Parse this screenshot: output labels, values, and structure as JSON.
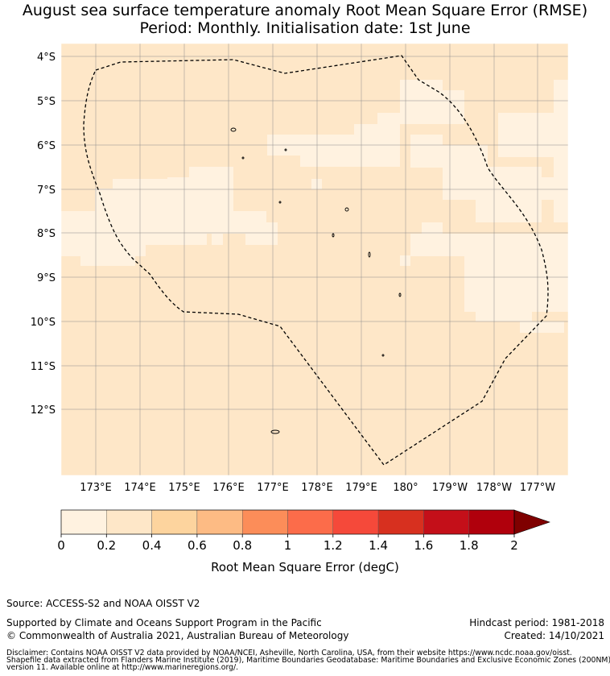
{
  "title": {
    "line1": "August sea surface temperature anomaly Root Mean Square Error (RMSE)",
    "line2": "Period: Monthly. Initialisation date: 1st June"
  },
  "map": {
    "lat_labels": [
      "4°S",
      "5°S",
      "6°S",
      "7°S",
      "8°S",
      "9°S",
      "10°S",
      "11°S",
      "12°S"
    ],
    "lon_labels": [
      "173°E",
      "174°E",
      "175°E",
      "176°E",
      "177°E",
      "178°E",
      "179°E",
      "180°",
      "179°W",
      "178°W",
      "177°W"
    ],
    "colors": {
      "cell_low": "#fff2e0",
      "cell_mid": "#fee7c8",
      "boundary": "#000000",
      "grid": "#8c8c8c"
    },
    "region_description_shown": "Tuvalu EEZ dashed boundary"
  },
  "colorbar": {
    "tick_labels": [
      "0",
      "0.2",
      "0.4",
      "0.6",
      "0.8",
      "1",
      "1.2",
      "1.4",
      "1.6",
      "1.8",
      "2"
    ],
    "colors": [
      "#fff2e0",
      "#fee7c8",
      "#fdd49e",
      "#fdbb84",
      "#fc8d59",
      "#fc6c4a",
      "#f5493a",
      "#d7301f",
      "#c40f19",
      "#b0000c",
      "#7f0000"
    ],
    "label": "Root Mean Square Error (degC)"
  },
  "footer": {
    "source": "Source: ACCESS-S2 and NOAA OISST V2",
    "support": "Supported by Climate and Oceans Support Program in the Pacific",
    "copyright": "© Commonwealth of Australia 2021, Australian Bureau of Meteorology",
    "hindcast": "Hindcast period: 1981-2018",
    "created": "Created: 14/10/2021",
    "disclaimer1": "Disclaimer: Contains NOAA OISST V2 data provided by NOAA/NCEI, Asheville, North Carolina, USA, from their website https://www.ncdc.noaa.gov/oisst.",
    "disclaimer2": "Shapefile data extracted from Flanders Marine Institute (2019), Maritime Boundaries Geodatabase: Maritime Boundaries and Exclusive Economic Zones (200NM),",
    "disclaimer3": "version 11. Available online at http://www.marineregions.org/."
  }
}
